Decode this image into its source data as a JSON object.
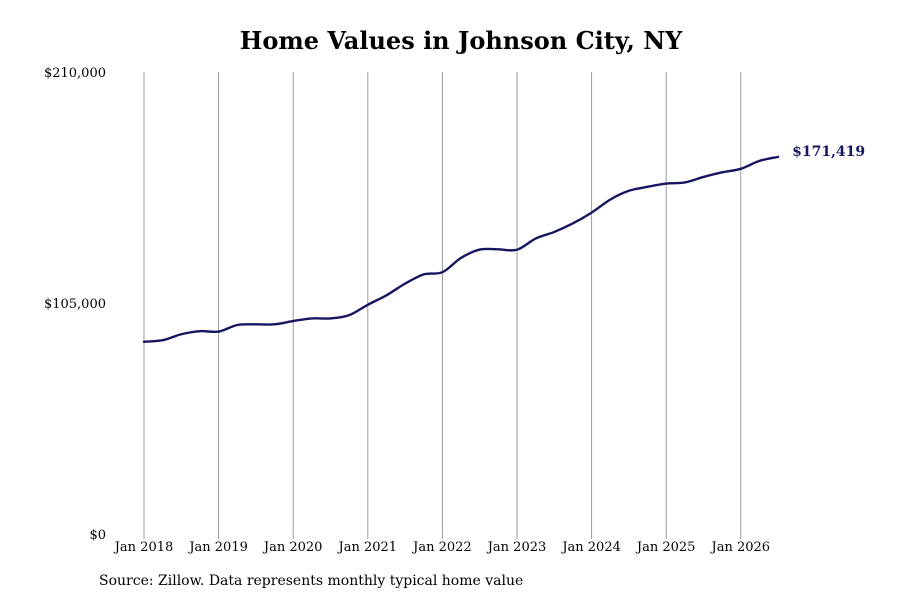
{
  "chart_data": {
    "type": "line",
    "title": "Home Values in Johnson City, NY",
    "xlabel": "",
    "ylabel": "",
    "x_tick_labels": [
      "Jan 2018",
      "Jan 2019",
      "Jan 2020",
      "Jan 2021",
      "Jan 2022",
      "Jan 2023",
      "Jan 2024",
      "Jan 2025",
      "Jan 2026"
    ],
    "x_tick_years": [
      2018,
      2019,
      2020,
      2021,
      2022,
      2023,
      2024,
      2025,
      2026
    ],
    "x_range": [
      2017.8,
      2026.9
    ],
    "y_tick_labels": [
      "$0",
      "$105,000",
      "$210,000"
    ],
    "y_tick_values": [
      0,
      105000,
      210000
    ],
    "ylim": [
      0,
      210000
    ],
    "grid": "vertical lines at x ticks",
    "line_color": "#161660",
    "series": [
      {
        "x": [
          2018.0,
          2018.25,
          2018.5,
          2018.75,
          2019.0,
          2019.25,
          2019.5,
          2019.75,
          2020.0,
          2020.25,
          2020.5,
          2020.75,
          2021.0,
          2021.25,
          2021.5,
          2021.75,
          2022.0,
          2022.25,
          2022.5,
          2022.75,
          2023.0,
          2023.25,
          2023.5,
          2023.75,
          2024.0,
          2024.25,
          2024.5,
          2024.75,
          2025.0,
          2025.25,
          2025.5,
          2025.75,
          2026.0,
          2026.25,
          2026.5
        ],
        "y": [
          87400,
          88100,
          90800,
          92200,
          92000,
          95000,
          95300,
          95300,
          96800,
          98000,
          98000,
          99500,
          104200,
          108500,
          113800,
          118000,
          119000,
          125500,
          129300,
          129400,
          129200,
          134300,
          137300,
          141200,
          146100,
          152000,
          156000,
          157800,
          159300,
          159800,
          162300,
          164400,
          166000,
          169600,
          171419
        ],
        "end_label": "$171,419"
      }
    ]
  },
  "source": "Source: Zillow. Data represents monthly typical home value"
}
